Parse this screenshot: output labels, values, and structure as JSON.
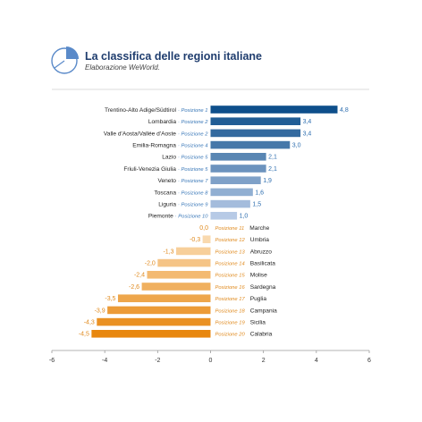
{
  "header": {
    "title": "La classifica delle regioni italiane",
    "subtitle": "Elaborazione WeWorld.",
    "logo_icon": "pie-chart-icon"
  },
  "chart_data": {
    "type": "bar",
    "orientation": "horizontal",
    "title": "La classifica delle regioni italiane",
    "subtitle": "Elaborazione WeWorld.",
    "xlim": [
      -6,
      6
    ],
    "xticks": [
      "-6",
      "-4",
      "-2",
      "0",
      "2",
      "4",
      "6"
    ],
    "grid": false,
    "legend": "none",
    "colors": {
      "positive_dark": "#0e4f8b",
      "positive_light": "#b7cae6",
      "negative_light": "#fbe3c2",
      "negative_dark": "#e8870f",
      "position_blue": "#3a78b8",
      "position_orange": "#e08a1e"
    },
    "rows": [
      {
        "region": "Trentino-Alto Adige/Südtirol",
        "position": "Posizione 1",
        "value": 4.8,
        "value_label": "4,8"
      },
      {
        "region": "Lombardia",
        "position": "Posizione 2",
        "value": 3.4,
        "value_label": "3,4"
      },
      {
        "region": "Valle d'Aosta/Vallée d'Aoste",
        "position": "Posizione 2",
        "value": 3.4,
        "value_label": "3,4"
      },
      {
        "region": "Emilia-Romagna",
        "position": "Posizione 4",
        "value": 3.0,
        "value_label": "3,0"
      },
      {
        "region": "Lazio",
        "position": "Posizione 5",
        "value": 2.1,
        "value_label": "2,1"
      },
      {
        "region": "Friuli-Venezia Giulia",
        "position": "Posizione 5",
        "value": 2.1,
        "value_label": "2,1"
      },
      {
        "region": "Veneto",
        "position": "Posizione 7",
        "value": 1.9,
        "value_label": "1,9"
      },
      {
        "region": "Toscana",
        "position": "Posizione 8",
        "value": 1.6,
        "value_label": "1,6"
      },
      {
        "region": "Liguria",
        "position": "Posizione 9",
        "value": 1.5,
        "value_label": "1,5"
      },
      {
        "region": "Piemonte",
        "position": "Posizione 10",
        "value": 1.0,
        "value_label": "1,0"
      },
      {
        "region": "Marche",
        "position": "Posizione 11",
        "value": 0.0,
        "value_label": "0,0"
      },
      {
        "region": "Umbria",
        "position": "Posizione 12",
        "value": -0.3,
        "value_label": "-0,3"
      },
      {
        "region": "Abruzzo",
        "position": "Posizione 13",
        "value": -1.3,
        "value_label": "-1,3"
      },
      {
        "region": "Basilicata",
        "position": "Posizione 14",
        "value": -2.0,
        "value_label": "-2,0"
      },
      {
        "region": "Molise",
        "position": "Posizione 15",
        "value": -2.4,
        "value_label": "-2,4"
      },
      {
        "region": "Sardegna",
        "position": "Posizione 16",
        "value": -2.6,
        "value_label": "-2,6"
      },
      {
        "region": "Puglia",
        "position": "Posizione 17",
        "value": -3.5,
        "value_label": "-3,5"
      },
      {
        "region": "Campania",
        "position": "Posizione 18",
        "value": -3.9,
        "value_label": "-3,9"
      },
      {
        "region": "Sicilia",
        "position": "Posizione 19",
        "value": -4.3,
        "value_label": "-4,3"
      },
      {
        "region": "Calabria",
        "position": "Posizione 20",
        "value": -4.5,
        "value_label": "-4,5"
      }
    ]
  }
}
